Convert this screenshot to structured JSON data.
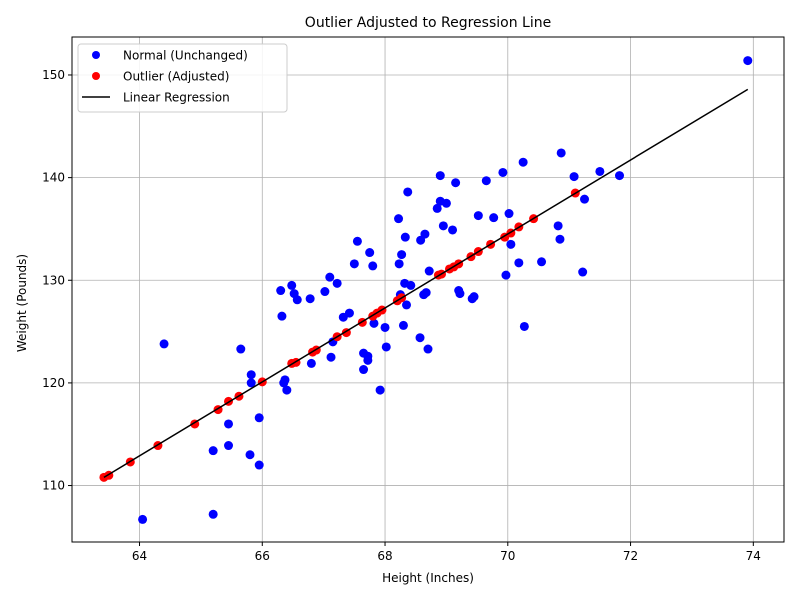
{
  "chart_data": {
    "type": "scatter",
    "title": "Outlier Adjusted to Regression Line",
    "xlabel": "Height (Inches)",
    "ylabel": "Weight (Pounds)",
    "xlim": [
      62.9,
      74.5
    ],
    "ylim": [
      104.5,
      153.7
    ],
    "xticks": [
      64,
      66,
      68,
      70,
      72,
      74
    ],
    "yticks": [
      110,
      120,
      130,
      140,
      150
    ],
    "grid": true,
    "legend_position": "top-left",
    "legend": {
      "normal": "Normal (Unchanged)",
      "outlier": "Outlier (Adjusted)",
      "regression": "Linear Regression"
    },
    "colors": {
      "normal": "#0000ff",
      "outlier": "#ff0000",
      "regression": "#000000"
    },
    "regression": {
      "x": [
        63.42,
        73.91
      ],
      "y": [
        110.8,
        148.6
      ]
    },
    "series": [
      {
        "name": "Normal (Unchanged)",
        "points": [
          [
            64.05,
            106.7
          ],
          [
            64.4,
            123.8
          ],
          [
            65.2,
            113.4
          ],
          [
            65.2,
            107.2
          ],
          [
            65.45,
            116.0
          ],
          [
            65.45,
            113.9
          ],
          [
            65.65,
            123.3
          ],
          [
            65.8,
            113.0
          ],
          [
            65.82,
            120.8
          ],
          [
            65.82,
            120.0
          ],
          [
            65.95,
            116.6
          ],
          [
            65.95,
            112.0
          ],
          [
            66.3,
            129.0
          ],
          [
            66.32,
            126.5
          ],
          [
            66.35,
            120.0
          ],
          [
            66.37,
            120.3
          ],
          [
            66.4,
            119.3
          ],
          [
            66.48,
            129.5
          ],
          [
            66.52,
            128.7
          ],
          [
            66.57,
            128.1
          ],
          [
            66.78,
            128.2
          ],
          [
            66.8,
            121.9
          ],
          [
            67.02,
            128.9
          ],
          [
            67.1,
            130.3
          ],
          [
            67.12,
            122.5
          ],
          [
            67.15,
            124.0
          ],
          [
            67.22,
            129.7
          ],
          [
            67.32,
            126.4
          ],
          [
            67.42,
            126.8
          ],
          [
            67.5,
            131.6
          ],
          [
            67.55,
            133.8
          ],
          [
            67.65,
            122.9
          ],
          [
            67.65,
            121.3
          ],
          [
            67.72,
            122.2
          ],
          [
            67.72,
            122.6
          ],
          [
            67.75,
            132.7
          ],
          [
            67.8,
            131.4
          ],
          [
            67.82,
            125.8
          ],
          [
            67.92,
            119.3
          ],
          [
            68.0,
            125.4
          ],
          [
            68.02,
            123.5
          ],
          [
            68.22,
            136.0
          ],
          [
            68.23,
            131.6
          ],
          [
            68.25,
            128.6
          ],
          [
            68.27,
            132.5
          ],
          [
            68.3,
            125.6
          ],
          [
            68.32,
            129.7
          ],
          [
            68.33,
            134.2
          ],
          [
            68.35,
            127.6
          ],
          [
            68.37,
            138.6
          ],
          [
            68.42,
            129.5
          ],
          [
            68.57,
            124.4
          ],
          [
            68.58,
            133.9
          ],
          [
            68.63,
            128.6
          ],
          [
            68.65,
            134.5
          ],
          [
            68.67,
            128.8
          ],
          [
            68.7,
            123.3
          ],
          [
            68.72,
            130.9
          ],
          [
            68.85,
            137.0
          ],
          [
            68.9,
            137.7
          ],
          [
            68.9,
            140.2
          ],
          [
            68.95,
            135.3
          ],
          [
            69.0,
            137.5
          ],
          [
            69.1,
            134.9
          ],
          [
            69.15,
            139.5
          ],
          [
            69.2,
            129.0
          ],
          [
            69.22,
            128.7
          ],
          [
            69.42,
            128.2
          ],
          [
            69.45,
            128.4
          ],
          [
            69.52,
            136.3
          ],
          [
            69.65,
            139.7
          ],
          [
            69.77,
            136.1
          ],
          [
            69.92,
            140.5
          ],
          [
            69.97,
            130.5
          ],
          [
            70.02,
            136.5
          ],
          [
            70.05,
            133.5
          ],
          [
            70.18,
            131.7
          ],
          [
            70.25,
            141.5
          ],
          [
            70.27,
            125.5
          ],
          [
            70.55,
            131.8
          ],
          [
            70.82,
            135.3
          ],
          [
            70.85,
            134.0
          ],
          [
            70.87,
            142.4
          ],
          [
            71.08,
            140.1
          ],
          [
            71.22,
            130.8
          ],
          [
            71.25,
            137.9
          ],
          [
            71.5,
            140.6
          ],
          [
            71.82,
            140.2
          ],
          [
            73.91,
            151.4
          ]
        ]
      },
      {
        "name": "Outlier (Adjusted)",
        "points": [
          [
            63.42,
            110.8
          ],
          [
            63.5,
            111.0
          ],
          [
            63.85,
            112.3
          ],
          [
            64.3,
            113.9
          ],
          [
            64.9,
            116.0
          ],
          [
            65.28,
            117.4
          ],
          [
            65.45,
            118.2
          ],
          [
            65.62,
            118.7
          ],
          [
            66.0,
            120.1
          ],
          [
            66.48,
            121.9
          ],
          [
            66.55,
            122.0
          ],
          [
            66.82,
            123.0
          ],
          [
            66.88,
            123.2
          ],
          [
            67.22,
            124.5
          ],
          [
            67.37,
            124.9
          ],
          [
            67.63,
            125.9
          ],
          [
            67.8,
            126.5
          ],
          [
            67.87,
            126.8
          ],
          [
            67.95,
            127.1
          ],
          [
            68.2,
            128.0
          ],
          [
            68.27,
            128.3
          ],
          [
            68.87,
            130.5
          ],
          [
            68.92,
            130.6
          ],
          [
            69.05,
            131.1
          ],
          [
            69.12,
            131.3
          ],
          [
            69.2,
            131.6
          ],
          [
            69.4,
            132.3
          ],
          [
            69.52,
            132.8
          ],
          [
            69.72,
            133.5
          ],
          [
            69.95,
            134.2
          ],
          [
            70.05,
            134.6
          ],
          [
            70.18,
            135.2
          ],
          [
            70.42,
            136.0
          ],
          [
            71.1,
            138.5
          ]
        ]
      }
    ]
  }
}
